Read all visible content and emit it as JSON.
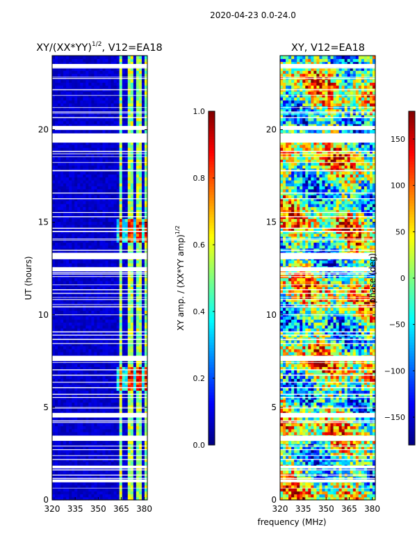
{
  "chart_data": {
    "figure_title": "2020-04-23 0.0-24.0",
    "shared_xlabel": "frequency (MHz)",
    "panels": [
      {
        "type": "heatmap",
        "title": "XY/(XX*YY)",
        "title_exponent": "1/2",
        "title_suffix": ", V12=EA18",
        "xlabel": "",
        "ylabel": "UT (hours)",
        "xlim": [
          320,
          382
        ],
        "ylim": [
          0,
          24
        ],
        "xticks": [
          320,
          335,
          350,
          365,
          380
        ],
        "yticks": [
          0,
          5,
          10,
          15,
          20
        ],
        "colorbar": {
          "label": "XY amp. / (XX*YY amp)",
          "label_exponent": "1/2",
          "range": [
            0.0,
            1.0
          ],
          "ticks": [
            "0.0",
            "0.2",
            "0.4",
            "0.6",
            "0.8",
            "1.0"
          ],
          "tick_values": [
            0.0,
            0.2,
            0.4,
            0.6,
            0.8,
            1.0
          ]
        },
        "colormap": "jet",
        "bright_channel_bands_mhz": [
          [
            363,
            366
          ],
          [
            369,
            372
          ],
          [
            375,
            378
          ],
          [
            380,
            382
          ]
        ],
        "strong_time_ranges_hours": [
          [
            13.9,
            15.2
          ],
          [
            6.0,
            7.2
          ]
        ],
        "flagged_time_ranges_hours": [
          [
            0.95,
            1.1
          ],
          [
            1.7,
            1.85
          ],
          [
            3.2,
            3.45
          ],
          [
            4.45,
            4.7
          ],
          [
            7.5,
            7.75
          ],
          [
            12.35,
            12.55
          ],
          [
            13.0,
            13.35
          ],
          [
            19.3,
            19.8
          ],
          [
            20.0,
            20.2
          ],
          [
            23.35,
            23.55
          ]
        ]
      },
      {
        "type": "heatmap",
        "title": "XY, V12=EA18",
        "xlabel": "",
        "ylabel": "",
        "xlim": [
          320,
          382
        ],
        "ylim": [
          0,
          24
        ],
        "xticks": [
          320,
          335,
          350,
          365,
          380
        ],
        "yticks": [
          0,
          5,
          10,
          15,
          20
        ],
        "colorbar": {
          "label": "phase (deg)",
          "range": [
            -180,
            180
          ],
          "ticks": [
            "−150",
            "−100",
            "−50",
            "0",
            "50",
            "100",
            "150"
          ],
          "tick_values": [
            -150,
            -100,
            -50,
            0,
            50,
            100,
            150
          ]
        },
        "colormap": "jet",
        "flagged_time_ranges_hours": [
          [
            0.95,
            1.1
          ],
          [
            1.7,
            1.85
          ],
          [
            3.2,
            3.45
          ],
          [
            4.45,
            4.7
          ],
          [
            7.5,
            7.75
          ],
          [
            12.35,
            12.55
          ],
          [
            13.0,
            13.35
          ],
          [
            19.3,
            19.8
          ],
          [
            20.0,
            20.2
          ],
          [
            23.35,
            23.55
          ]
        ]
      }
    ]
  }
}
